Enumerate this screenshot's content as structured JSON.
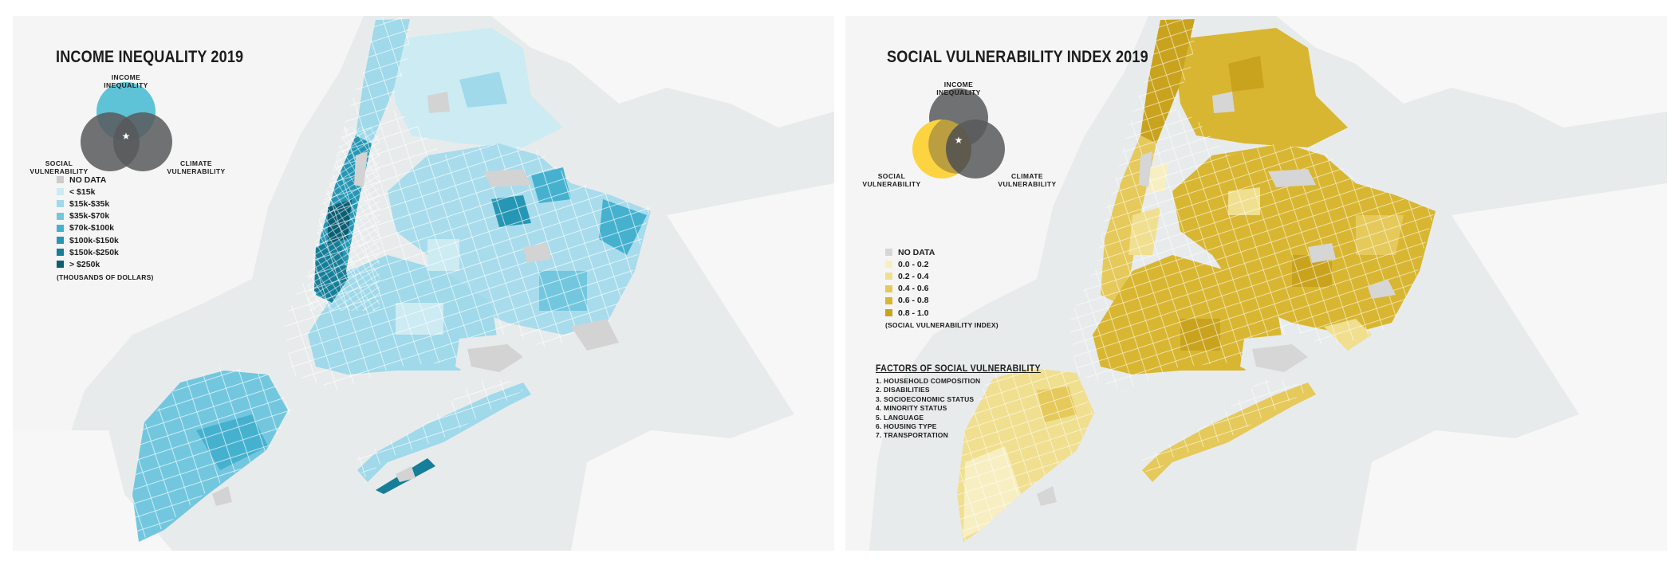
{
  "maps": [
    {
      "id": "income",
      "title": "INCOME INEQUALITY 2019",
      "venn": {
        "top_label": "INCOME\nINEQUALITY",
        "left_label": "SOCIAL\nVULNERABILITY",
        "right_label": "CLIMATE\nVULNERABILITY",
        "highlighted": "top",
        "highlight_color": "#5ec3d6",
        "circle_color": "#58595b"
      },
      "legend": [
        {
          "label": "NO DATA",
          "color": "#cccccc"
        },
        {
          "label": "< $15k",
          "color": "#cdebf3"
        },
        {
          "label": "$15k-$35k",
          "color": "#9fd9ea"
        },
        {
          "label": "$35k-$70k",
          "color": "#72c7df"
        },
        {
          "label": "$70k-$100k",
          "color": "#45b1cf"
        },
        {
          "label": "$100k-$150k",
          "color": "#2597b5"
        },
        {
          "label": "$150k-$250k",
          "color": "#167e98"
        },
        {
          "label": "> $250k",
          "color": "#0b5f75"
        }
      ],
      "legend_note": "(THOUSANDS OF DOLLARS)"
    },
    {
      "id": "svi",
      "title": "SOCIAL VULNERABILITY INDEX 2019",
      "venn": {
        "top_label": "INCOME\nINEQUALITY",
        "left_label": "SOCIAL\nVULNERABILITY",
        "right_label": "CLIMATE\nVULNERABILITY",
        "highlighted": "left",
        "highlight_color": "#fdd33f",
        "circle_color": "#58595b"
      },
      "legend": [
        {
          "label": "NO DATA",
          "color": "#d6d6d6"
        },
        {
          "label": "0.0 - 0.2",
          "color": "#f7efc2"
        },
        {
          "label": "0.2 - 0.4",
          "color": "#f0df8f"
        },
        {
          "label": "0.4 - 0.6",
          "color": "#e5c95a"
        },
        {
          "label": "0.6 - 0.8",
          "color": "#d8b631"
        },
        {
          "label": "0.8 - 1.0",
          "color": "#c9a31e"
        }
      ],
      "legend_note": "(SOCIAL VULNERABILITY INDEX)",
      "factors": {
        "title": "FACTORS OF SOCIAL VULNERABILITY",
        "items": [
          "1. HOUSEHOLD COMPOSITION",
          "2. DISABILITIES",
          "3. SOCIOECONOMIC STATUS",
          "4. MINORITY STATUS",
          "5. LANGUAGE",
          "6. HOUSING TYPE",
          "7. TRANSPORTATION"
        ]
      }
    }
  ]
}
